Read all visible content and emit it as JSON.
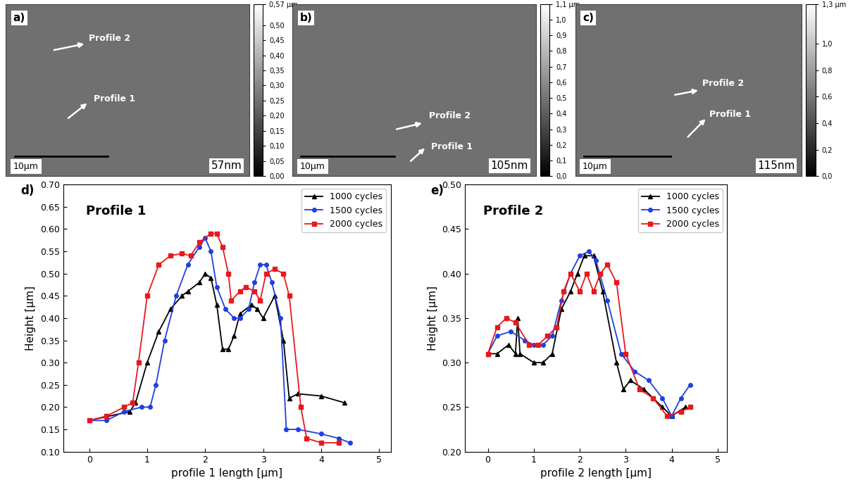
{
  "chart_data": [
    {
      "type": "image",
      "panel_label": "a)",
      "profile_labels": [
        "Profile 1",
        "Profile 2"
      ],
      "scale_bar": "10µm",
      "roughness": "57nm",
      "colorbar_range": [
        0,
        0.57
      ],
      "colorbar_ticks": [
        {
          "value": 0.57,
          "label": "0,57 µm"
        },
        {
          "value": 0.5,
          "label": "0,50"
        },
        {
          "value": 0.45,
          "label": "0,45"
        },
        {
          "value": 0.4,
          "label": "0,40"
        },
        {
          "value": 0.35,
          "label": "0,35"
        },
        {
          "value": 0.3,
          "label": "0,30"
        },
        {
          "value": 0.25,
          "label": "0,25"
        },
        {
          "value": 0.2,
          "label": "0,20"
        },
        {
          "value": 0.15,
          "label": "0,15"
        },
        {
          "value": 0.1,
          "label": "0,10"
        },
        {
          "value": 0.05,
          "label": "0,05"
        },
        {
          "value": 0,
          "label": "0,00"
        }
      ]
    },
    {
      "type": "image",
      "panel_label": "b)",
      "profile_labels": [
        "Profile 1",
        "Profile 2"
      ],
      "scale_bar": "10µm",
      "roughness": "105nm",
      "colorbar_range": [
        0,
        1.1
      ],
      "colorbar_ticks": [
        {
          "value": 1.1,
          "label": "1,1 µm"
        },
        {
          "value": 1.0,
          "label": "1,0"
        },
        {
          "value": 0.9,
          "label": "0,9"
        },
        {
          "value": 0.8,
          "label": "0,8"
        },
        {
          "value": 0.7,
          "label": "0,7"
        },
        {
          "value": 0.6,
          "label": "0,6"
        },
        {
          "value": 0.5,
          "label": "0,5"
        },
        {
          "value": 0.4,
          "label": "0,4"
        },
        {
          "value": 0.3,
          "label": "0,3"
        },
        {
          "value": 0.2,
          "label": "0,2"
        },
        {
          "value": 0.1,
          "label": "0,1"
        },
        {
          "value": 0,
          "label": "0,0"
        }
      ]
    },
    {
      "type": "image",
      "panel_label": "c)",
      "profile_labels": [
        "Profile 1",
        "Profile 2"
      ],
      "scale_bar": "10µm",
      "roughness": "115nm",
      "colorbar_range": [
        0,
        1.3
      ],
      "colorbar_ticks": [
        {
          "value": 1.3,
          "label": "1,3 µm"
        },
        {
          "value": 1.0,
          "label": "1,0"
        },
        {
          "value": 0.8,
          "label": "0,8"
        },
        {
          "value": 0.6,
          "label": "0,6"
        },
        {
          "value": 0.4,
          "label": "0,4"
        },
        {
          "value": 0.2,
          "label": "0,2"
        },
        {
          "value": 0,
          "label": "0,0"
        }
      ]
    },
    {
      "type": "line",
      "panel_label": "d)",
      "title": "Profile 1",
      "x_label": "profile 1 length [µm]",
      "y_label": "Height [µm]",
      "xlim": [
        -0.45,
        5.2
      ],
      "xticks": [
        0,
        1,
        2,
        3,
        4,
        5
      ],
      "ylim": [
        0.1,
        0.7
      ],
      "yticks": [
        {
          "value": 0.1,
          "label": "0.10"
        },
        {
          "value": 0.15,
          "label": "0.15"
        },
        {
          "value": 0.2,
          "label": "0.20"
        },
        {
          "value": 0.25,
          "label": "0.25"
        },
        {
          "value": 0.3,
          "label": "0.30"
        },
        {
          "value": 0.35,
          "label": "0.35"
        },
        {
          "value": 0.4,
          "label": "0.40"
        },
        {
          "value": 0.45,
          "label": "0.45"
        },
        {
          "value": 0.5,
          "label": "0.50"
        },
        {
          "value": 0.55,
          "label": "0.55"
        },
        {
          "value": 0.6,
          "label": "0.60"
        },
        {
          "value": 0.65,
          "label": "0.65"
        },
        {
          "value": 0.7,
          "label": "0.70"
        }
      ],
      "legend": "upper right",
      "series": [
        {
          "name": "1000 cycles",
          "color": "#000000",
          "marker": "triangle",
          "x": [
            0,
            0.7,
            0.8,
            1.0,
            1.2,
            1.4,
            1.6,
            1.7,
            1.9,
            2.0,
            2.1,
            2.2,
            2.3,
            2.4,
            2.5,
            2.6,
            2.8,
            2.9,
            3.0,
            3.2,
            3.35,
            3.45,
            3.6,
            4.0,
            4.4
          ],
          "values": [
            0.17,
            0.19,
            0.21,
            0.3,
            0.37,
            0.42,
            0.45,
            0.46,
            0.48,
            0.5,
            0.49,
            0.43,
            0.33,
            0.33,
            0.36,
            0.41,
            0.43,
            0.42,
            0.4,
            0.45,
            0.35,
            0.22,
            0.23,
            0.225,
            0.21
          ]
        },
        {
          "name": "1500 cycles",
          "color": "#1f3fe0",
          "marker": "circle",
          "x": [
            0,
            0.3,
            0.6,
            0.9,
            1.05,
            1.15,
            1.3,
            1.5,
            1.7,
            1.9,
            2.0,
            2.1,
            2.2,
            2.35,
            2.5,
            2.6,
            2.75,
            2.85,
            2.95,
            3.05,
            3.15,
            3.3,
            3.4,
            3.6,
            4.0,
            4.3,
            4.5
          ],
          "values": [
            0.17,
            0.17,
            0.19,
            0.2,
            0.2,
            0.25,
            0.35,
            0.45,
            0.52,
            0.56,
            0.58,
            0.55,
            0.47,
            0.42,
            0.4,
            0.4,
            0.42,
            0.48,
            0.52,
            0.52,
            0.48,
            0.4,
            0.15,
            0.15,
            0.14,
            0.13,
            0.12
          ]
        },
        {
          "name": "2000 cycles",
          "color": "#e8181b",
          "marker": "square",
          "x": [
            0,
            0.3,
            0.6,
            0.75,
            0.85,
            1.0,
            1.2,
            1.4,
            1.6,
            1.75,
            1.9,
            2.1,
            2.2,
            2.3,
            2.4,
            2.45,
            2.6,
            2.7,
            2.85,
            2.95,
            3.05,
            3.2,
            3.35,
            3.45,
            3.65,
            3.75,
            4.0,
            4.3
          ],
          "values": [
            0.17,
            0.18,
            0.2,
            0.21,
            0.3,
            0.45,
            0.52,
            0.54,
            0.545,
            0.54,
            0.57,
            0.59,
            0.59,
            0.56,
            0.5,
            0.44,
            0.46,
            0.47,
            0.46,
            0.44,
            0.5,
            0.51,
            0.5,
            0.45,
            0.2,
            0.13,
            0.12,
            0.12
          ]
        }
      ]
    },
    {
      "type": "line",
      "panel_label": "e)",
      "title": "Profile 2",
      "x_label": "profile 2 length [µm]",
      "y_label": "Height [µm]",
      "xlim": [
        -0.5,
        5.2
      ],
      "xticks": [
        0,
        1,
        2,
        3,
        4,
        5
      ],
      "ylim": [
        0.2,
        0.5
      ],
      "yticks": [
        {
          "value": 0.2,
          "label": "0.20"
        },
        {
          "value": 0.25,
          "label": "0.25"
        },
        {
          "value": 0.3,
          "label": "0.30"
        },
        {
          "value": 0.35,
          "label": "0.35"
        },
        {
          "value": 0.4,
          "label": "0.40"
        },
        {
          "value": 0.45,
          "label": "0.45"
        },
        {
          "value": 0.5,
          "label": "0.50"
        }
      ],
      "legend": "upper right",
      "series": [
        {
          "name": "1000 cycles",
          "color": "#000000",
          "marker": "triangle",
          "x": [
            0,
            0.2,
            0.45,
            0.6,
            0.65,
            0.7,
            1.0,
            1.2,
            1.4,
            1.6,
            1.8,
            1.95,
            2.1,
            2.3,
            2.5,
            2.8,
            2.95,
            3.1,
            3.4,
            3.8,
            4.0,
            4.3
          ],
          "values": [
            0.31,
            0.31,
            0.32,
            0.31,
            0.35,
            0.31,
            0.3,
            0.3,
            0.31,
            0.36,
            0.38,
            0.4,
            0.42,
            0.42,
            0.38,
            0.3,
            0.27,
            0.28,
            0.27,
            0.25,
            0.24,
            0.25
          ]
        },
        {
          "name": "1500 cycles",
          "color": "#1f3fe0",
          "marker": "circle",
          "x": [
            0,
            0.2,
            0.5,
            0.8,
            1.0,
            1.2,
            1.4,
            1.6,
            1.8,
            2.0,
            2.2,
            2.35,
            2.6,
            2.9,
            3.2,
            3.5,
            3.8,
            4.0,
            4.2,
            4.4
          ],
          "values": [
            0.31,
            0.33,
            0.335,
            0.325,
            0.32,
            0.32,
            0.33,
            0.37,
            0.4,
            0.42,
            0.425,
            0.415,
            0.37,
            0.31,
            0.29,
            0.28,
            0.26,
            0.24,
            0.26,
            0.275
          ]
        },
        {
          "name": "2000 cycles",
          "color": "#e8181b",
          "marker": "square",
          "x": [
            0,
            0.2,
            0.4,
            0.6,
            0.9,
            1.1,
            1.3,
            1.5,
            1.65,
            1.8,
            2.0,
            2.15,
            2.3,
            2.45,
            2.6,
            2.8,
            3.0,
            3.3,
            3.6,
            3.9,
            4.2,
            4.4
          ],
          "values": [
            0.31,
            0.34,
            0.35,
            0.345,
            0.32,
            0.32,
            0.33,
            0.34,
            0.38,
            0.4,
            0.38,
            0.4,
            0.38,
            0.4,
            0.41,
            0.39,
            0.31,
            0.27,
            0.26,
            0.24,
            0.245,
            0.25
          ]
        }
      ]
    }
  ]
}
